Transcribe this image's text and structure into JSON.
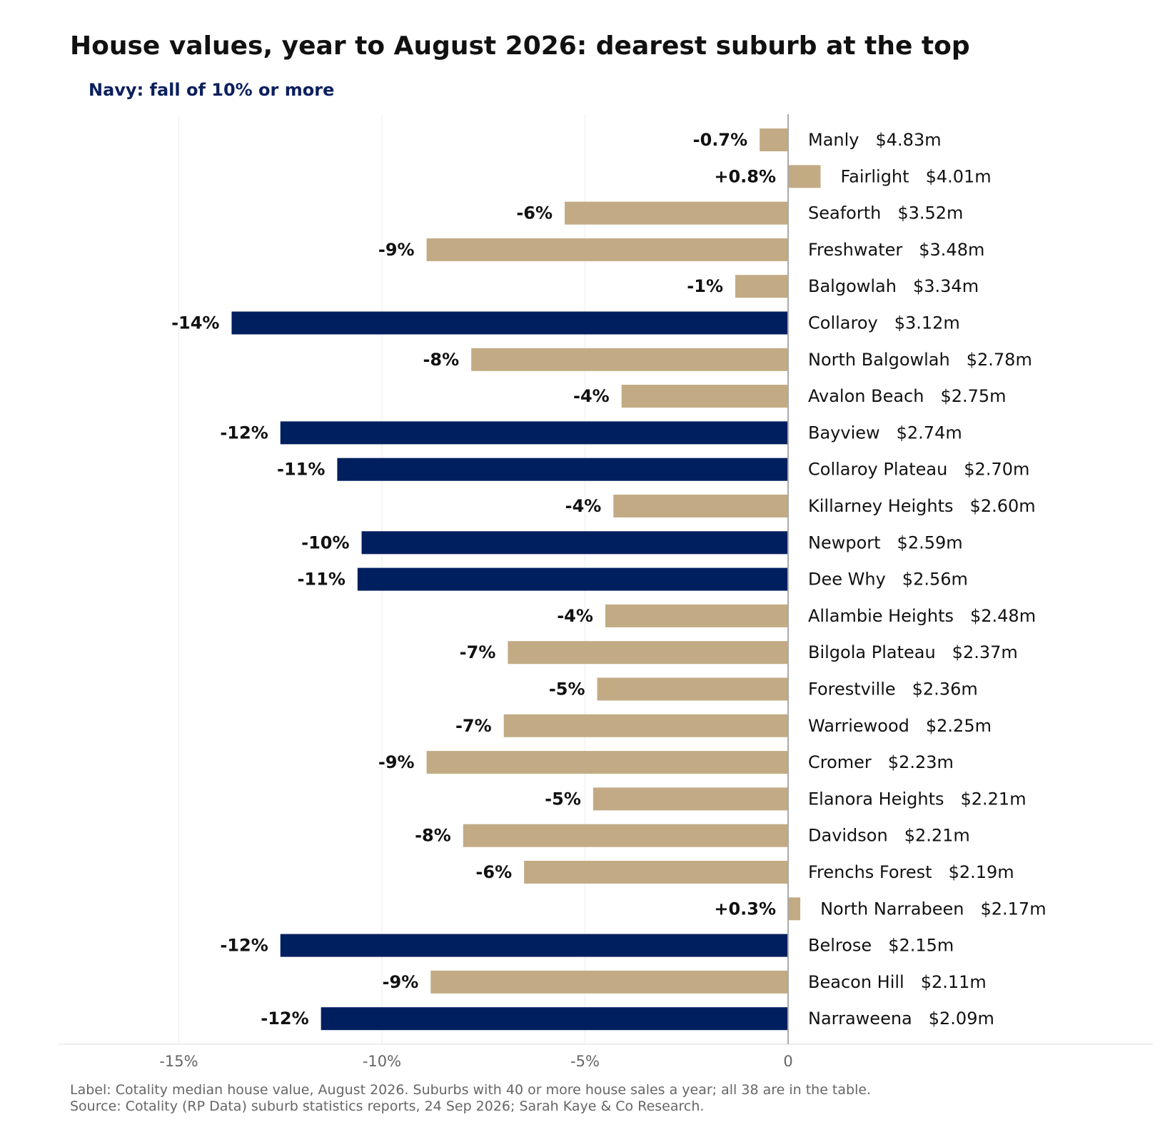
{
  "chart_data": {
    "type": "bar",
    "orientation": "horizontal",
    "title": "House values, year to August 2026: dearest suburb at the top",
    "subtitle": "Navy: fall of 10% or more",
    "xlabel": "",
    "ylabel": "",
    "xlim": [
      -15.4,
      10.7
    ],
    "grid": "vertical",
    "x_ticks": [
      {
        "value": -15,
        "label": "-15%"
      },
      {
        "value": -10,
        "label": "-10%"
      },
      {
        "value": -5,
        "label": "-5%"
      },
      {
        "value": 0,
        "label": "0"
      }
    ],
    "colors": {
      "fall_10_or_more": "#001f5f",
      "other": "#c2ab84",
      "zero_line": "#aaaaaa",
      "grid": "#eeeeee"
    },
    "highlight_rule": "fall of 10% or more",
    "bars": [
      {
        "suburb": "Manly",
        "median": "$4.83m",
        "change": -0.7,
        "label": "-0.7%",
        "highlight": false
      },
      {
        "suburb": "Fairlight",
        "median": "$4.01m",
        "change": 0.8,
        "label": "+0.8%",
        "highlight": false
      },
      {
        "suburb": "Seaforth",
        "median": "$3.52m",
        "change": -5.5,
        "label": "-6%",
        "highlight": false
      },
      {
        "suburb": "Freshwater",
        "median": "$3.48m",
        "change": -8.9,
        "label": "-9%",
        "highlight": false
      },
      {
        "suburb": "Balgowlah",
        "median": "$3.34m",
        "change": -1.3,
        "label": "-1%",
        "highlight": false
      },
      {
        "suburb": "Collaroy",
        "median": "$3.12m",
        "change": -13.7,
        "label": "-14%",
        "highlight": true
      },
      {
        "suburb": "North Balgowlah",
        "median": "$2.78m",
        "change": -7.8,
        "label": "-8%",
        "highlight": false
      },
      {
        "suburb": "Avalon Beach",
        "median": "$2.75m",
        "change": -4.1,
        "label": "-4%",
        "highlight": false
      },
      {
        "suburb": "Bayview",
        "median": "$2.74m",
        "change": -12.5,
        "label": "-12%",
        "highlight": true
      },
      {
        "suburb": "Collaroy Plateau",
        "median": "$2.70m",
        "change": -11.1,
        "label": "-11%",
        "highlight": true
      },
      {
        "suburb": "Killarney Heights",
        "median": "$2.60m",
        "change": -4.3,
        "label": "-4%",
        "highlight": false
      },
      {
        "suburb": "Newport",
        "median": "$2.59m",
        "change": -10.5,
        "label": "-10%",
        "highlight": true
      },
      {
        "suburb": "Dee Why",
        "median": "$2.56m",
        "change": -10.6,
        "label": "-11%",
        "highlight": true
      },
      {
        "suburb": "Allambie Heights",
        "median": "$2.48m",
        "change": -4.5,
        "label": "-4%",
        "highlight": false
      },
      {
        "suburb": "Bilgola Plateau",
        "median": "$2.37m",
        "change": -6.9,
        "label": "-7%",
        "highlight": false
      },
      {
        "suburb": "Forestville",
        "median": "$2.36m",
        "change": -4.7,
        "label": "-5%",
        "highlight": false
      },
      {
        "suburb": "Warriewood",
        "median": "$2.25m",
        "change": -7.0,
        "label": "-7%",
        "highlight": false
      },
      {
        "suburb": "Cromer",
        "median": "$2.23m",
        "change": -8.9,
        "label": "-9%",
        "highlight": false
      },
      {
        "suburb": "Elanora Heights",
        "median": "$2.21m",
        "change": -4.8,
        "label": "-5%",
        "highlight": false
      },
      {
        "suburb": "Davidson",
        "median": "$2.21m",
        "change": -8.0,
        "label": "-8%",
        "highlight": false
      },
      {
        "suburb": "Frenchs Forest",
        "median": "$2.19m",
        "change": -6.5,
        "label": "-6%",
        "highlight": false
      },
      {
        "suburb": "North Narrabeen",
        "median": "$2.17m",
        "change": 0.3,
        "label": "+0.3%",
        "highlight": false
      },
      {
        "suburb": "Belrose",
        "median": "$2.15m",
        "change": -12.5,
        "label": "-12%",
        "highlight": true
      },
      {
        "suburb": "Beacon Hill",
        "median": "$2.11m",
        "change": -8.8,
        "label": "-9%",
        "highlight": false
      },
      {
        "suburb": "Narraweena",
        "median": "$2.09m",
        "change": -11.5,
        "label": "-12%",
        "highlight": true
      }
    ]
  },
  "footnote": {
    "line1": "Label: Cotality median house value, August 2026. Suburbs with 40 or more house sales a year; all 38 are in the table.",
    "line2": "Source: Cotality (RP Data) suburb statistics reports, 24 Sep 2026; Sarah Kaye & Co Research."
  }
}
